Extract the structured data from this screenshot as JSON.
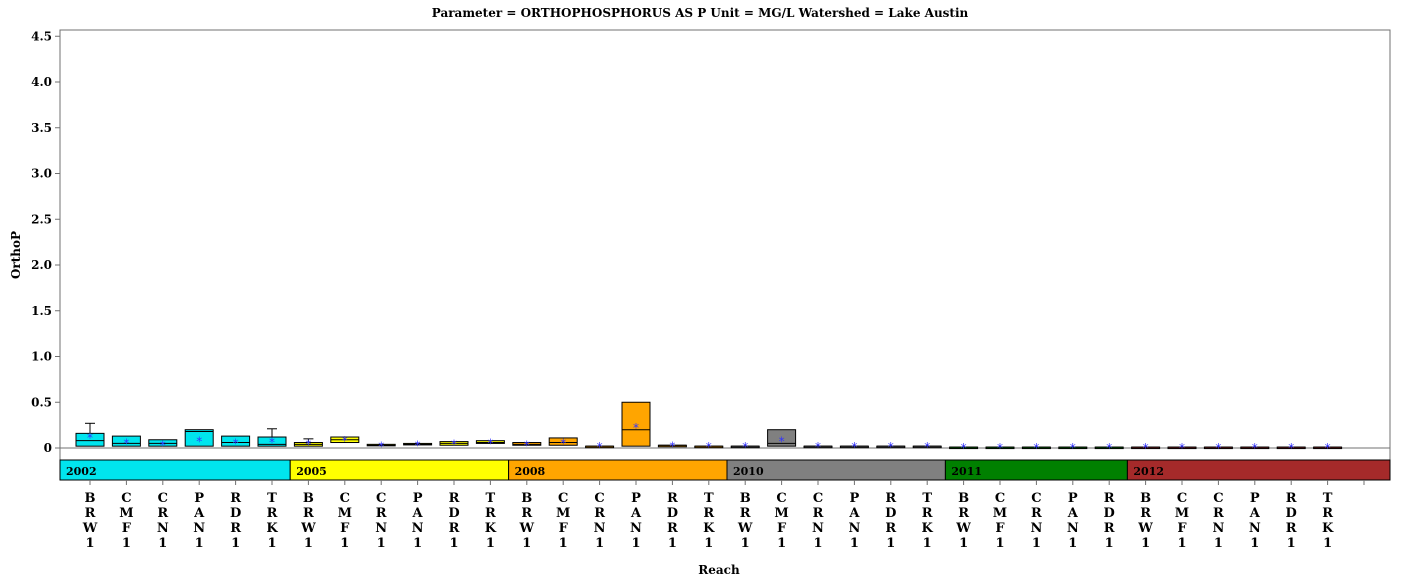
{
  "chart_data": {
    "type": "box",
    "title": "Parameter = ORTHOPHOSPHORUS AS P Unit = MG/L Watershed = Lake Austin",
    "xlabel": "Reach",
    "ylabel": "OrthoP",
    "ylim": [
      -0.3,
      4.6
    ],
    "y_ticks": [
      "0",
      "0.5",
      "1.0",
      "1.5",
      "2.0",
      "2.5",
      "3.0",
      "3.5",
      "4.0",
      "4.5"
    ],
    "y_tick_values": [
      0,
      0.5,
      1.0,
      1.5,
      2.0,
      2.5,
      3.0,
      3.5,
      4.0,
      4.5
    ],
    "grid": false,
    "years": [
      {
        "label": "2002",
        "color": "#00e5ee",
        "count": 6
      },
      {
        "label": "2005",
        "color": "#ffff00",
        "count": 6
      },
      {
        "label": "2008",
        "color": "#ffa500",
        "count": 6
      },
      {
        "label": "2010",
        "color": "#808080",
        "count": 6
      },
      {
        "label": "2011",
        "color": "#008000",
        "count": 5
      },
      {
        "label": "2012",
        "color": "#a52a2a",
        "count": 6
      }
    ],
    "categories": [
      "BRW1",
      "CMF1",
      "CRN1",
      "PAN1",
      "RDR1",
      "TRK1",
      "BRW1",
      "CMF1",
      "CRN1",
      "PAN1",
      "RDR1",
      "TRK1",
      "BRW1",
      "CMF1",
      "CRN1",
      "PAN1",
      "RDR1",
      "TRK1",
      "BRW1",
      "CMF1",
      "CRN1",
      "PAN1",
      "RDR1",
      "TRK1",
      "BRW1",
      "CMF1",
      "CRN1",
      "PAN1",
      "RDR1",
      "BRW1",
      "CMF1",
      "CRN1",
      "PAN1",
      "RDR1",
      "TRK1"
    ],
    "boxes": [
      {
        "q1": 0.02,
        "median": 0.08,
        "q3": 0.16,
        "whisker_low": 0.02,
        "whisker_high": 0.27,
        "mean": 0.12
      },
      {
        "q1": 0.02,
        "median": 0.05,
        "q3": 0.13,
        "whisker_low": 0.02,
        "whisker_high": 0.13,
        "mean": 0.06
      },
      {
        "q1": 0.02,
        "median": 0.05,
        "q3": 0.09,
        "whisker_low": 0.02,
        "whisker_high": 0.09,
        "mean": 0.04
      },
      {
        "q1": 0.02,
        "median": 0.18,
        "q3": 0.2,
        "whisker_low": 0.02,
        "whisker_high": 0.2,
        "mean": 0.08
      },
      {
        "q1": 0.02,
        "median": 0.06,
        "q3": 0.13,
        "whisker_low": 0.02,
        "whisker_high": 0.13,
        "mean": 0.06
      },
      {
        "q1": 0.02,
        "median": 0.04,
        "q3": 0.12,
        "whisker_low": 0.02,
        "whisker_high": 0.21,
        "mean": 0.07
      },
      {
        "q1": 0.02,
        "median": 0.04,
        "q3": 0.06,
        "whisker_low": 0.02,
        "whisker_high": 0.1,
        "mean": 0.05
      },
      {
        "q1": 0.06,
        "median": 0.09,
        "q3": 0.12,
        "whisker_low": 0.06,
        "whisker_high": 0.12,
        "mean": 0.09
      },
      {
        "q1": 0.03,
        "median": 0.03,
        "q3": 0.04,
        "whisker_low": 0.03,
        "whisker_high": 0.04,
        "mean": 0.03
      },
      {
        "q1": 0.04,
        "median": 0.04,
        "q3": 0.05,
        "whisker_low": 0.04,
        "whisker_high": 0.05,
        "mean": 0.04
      },
      {
        "q1": 0.03,
        "median": 0.05,
        "q3": 0.07,
        "whisker_low": 0.03,
        "whisker_high": 0.07,
        "mean": 0.05
      },
      {
        "q1": 0.05,
        "median": 0.06,
        "q3": 0.08,
        "whisker_low": 0.05,
        "whisker_high": 0.08,
        "mean": 0.06
      },
      {
        "q1": 0.03,
        "median": 0.04,
        "q3": 0.06,
        "whisker_low": 0.03,
        "whisker_high": 0.06,
        "mean": 0.04
      },
      {
        "q1": 0.03,
        "median": 0.06,
        "q3": 0.11,
        "whisker_low": 0.03,
        "whisker_high": 0.11,
        "mean": 0.06
      },
      {
        "q1": 0.02,
        "median": 0.02,
        "q3": 0.02,
        "whisker_low": 0.02,
        "whisker_high": 0.02,
        "mean": 0.02
      },
      {
        "q1": 0.02,
        "median": 0.2,
        "q3": 0.5,
        "whisker_low": 0.02,
        "whisker_high": 0.5,
        "mean": 0.23
      },
      {
        "q1": 0.02,
        "median": 0.03,
        "q3": 0.03,
        "whisker_low": 0.02,
        "whisker_high": 0.03,
        "mean": 0.03
      },
      {
        "q1": 0.02,
        "median": 0.02,
        "q3": 0.02,
        "whisker_low": 0.02,
        "whisker_high": 0.02,
        "mean": 0.02
      },
      {
        "q1": 0.02,
        "median": 0.02,
        "q3": 0.02,
        "whisker_low": 0.02,
        "whisker_high": 0.02,
        "mean": 0.02
      },
      {
        "q1": 0.02,
        "median": 0.05,
        "q3": 0.2,
        "whisker_low": 0.02,
        "whisker_high": 0.2,
        "mean": 0.08
      },
      {
        "q1": 0.02,
        "median": 0.02,
        "q3": 0.02,
        "whisker_low": 0.02,
        "whisker_high": 0.02,
        "mean": 0.02
      },
      {
        "q1": 0.02,
        "median": 0.02,
        "q3": 0.02,
        "whisker_low": 0.02,
        "whisker_high": 0.02,
        "mean": 0.02
      },
      {
        "q1": 0.02,
        "median": 0.02,
        "q3": 0.02,
        "whisker_low": 0.02,
        "whisker_high": 0.02,
        "mean": 0.02
      },
      {
        "q1": 0.02,
        "median": 0.02,
        "q3": 0.02,
        "whisker_low": 0.02,
        "whisker_high": 0.02,
        "mean": 0.02
      },
      {
        "q1": 0.01,
        "median": 0.01,
        "q3": 0.01,
        "whisker_low": 0.01,
        "whisker_high": 0.01,
        "mean": 0.01
      },
      {
        "q1": 0.01,
        "median": 0.01,
        "q3": 0.01,
        "whisker_low": 0.01,
        "whisker_high": 0.01,
        "mean": 0.01
      },
      {
        "q1": 0.01,
        "median": 0.01,
        "q3": 0.01,
        "whisker_low": 0.01,
        "whisker_high": 0.01,
        "mean": 0.01
      },
      {
        "q1": 0.01,
        "median": 0.01,
        "q3": 0.01,
        "whisker_low": 0.01,
        "whisker_high": 0.01,
        "mean": 0.01
      },
      {
        "q1": 0.01,
        "median": 0.01,
        "q3": 0.01,
        "whisker_low": 0.01,
        "whisker_high": 0.01,
        "mean": 0.01
      },
      {
        "q1": 0.01,
        "median": 0.01,
        "q3": 0.01,
        "whisker_low": 0.01,
        "whisker_high": 0.01,
        "mean": 0.01
      },
      {
        "q1": 0.01,
        "median": 0.01,
        "q3": 0.01,
        "whisker_low": 0.01,
        "whisker_high": 0.01,
        "mean": 0.01
      },
      {
        "q1": 0.01,
        "median": 0.01,
        "q3": 0.01,
        "whisker_low": 0.01,
        "whisker_high": 0.01,
        "mean": 0.01
      },
      {
        "q1": 0.01,
        "median": 0.01,
        "q3": 0.01,
        "whisker_low": 0.01,
        "whisker_high": 0.01,
        "mean": 0.01
      },
      {
        "q1": 0.01,
        "median": 0.01,
        "q3": 0.01,
        "whisker_low": 0.01,
        "whisker_high": 0.01,
        "mean": 0.01
      },
      {
        "q1": 0.01,
        "median": 0.01,
        "q3": 0.01,
        "whisker_low": 0.01,
        "whisker_high": 0.01,
        "mean": 0.01
      }
    ],
    "mean_marker_color": "#3333ff",
    "outline_color": "#000000"
  }
}
